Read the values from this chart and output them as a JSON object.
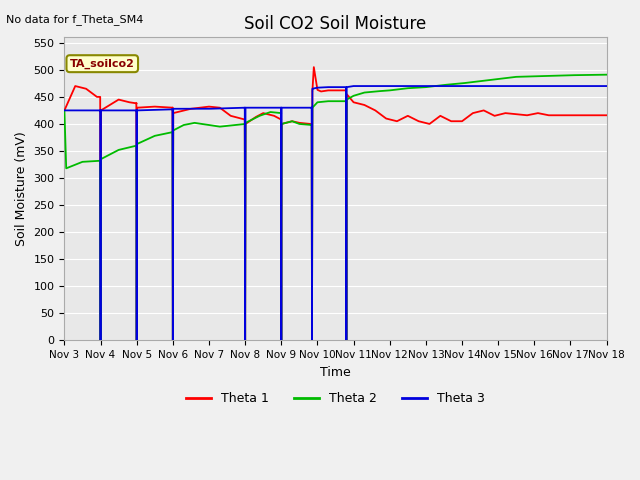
{
  "title": "Soil CO2 Soil Moisture",
  "ylabel": "Soil Moisture (mV)",
  "xlabel": "Time",
  "top_left_text": "No data for f_Theta_SM4",
  "legend_box_text": "TA_soilco2",
  "ylim": [
    0,
    560
  ],
  "yticks": [
    0,
    50,
    100,
    150,
    200,
    250,
    300,
    350,
    400,
    450,
    500,
    550
  ],
  "xtick_labels": [
    "Nov 3",
    "Nov 4",
    "Nov 5",
    "Nov 6",
    "Nov 7",
    "Nov 8",
    "Nov 9",
    "Nov 10",
    "Nov 11",
    "Nov 12",
    "Nov 13",
    "Nov 14",
    "Nov 15",
    "Nov 16",
    "Nov 17",
    "Nov 18"
  ],
  "colors": {
    "theta1": "#ff0000",
    "theta2": "#00bb00",
    "theta3": "#0000dd",
    "legend_line1": "#ff0000",
    "legend_line2": "#00bb00",
    "legend_line3": "#0000dd"
  },
  "figsize": [
    6.4,
    4.8
  ],
  "dpi": 100,
  "plot_bg": "#e8e8e8",
  "fig_bg": "#f0f0f0",
  "grid_color": "#ffffff",
  "spine_color": "#aaaaaa"
}
